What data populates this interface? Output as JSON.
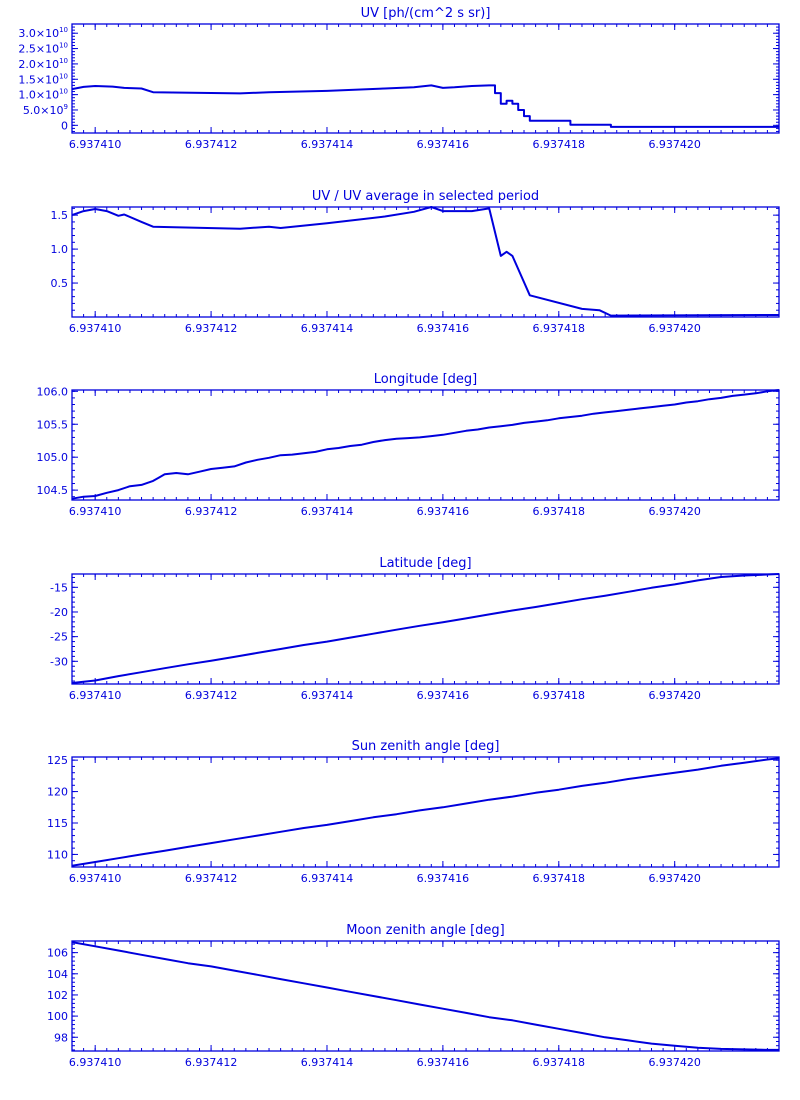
{
  "colors": {
    "line": "#0000dd",
    "background": "#ffffff"
  },
  "chart_data": [
    {
      "type": "line",
      "title": "UV [ph/(cm^2 s sr)]",
      "xlim": [
        6.9374096,
        6.9374218
      ],
      "ylim": [
        -2500000000.0,
        33000000000.0
      ],
      "xticks": [
        6.93741,
        6.937412,
        6.937414,
        6.937416,
        6.937418,
        6.93742
      ],
      "xtick_labels": [
        "6.937410",
        "6.937412",
        "6.937414",
        "6.937416",
        "6.937418",
        "6.937420"
      ],
      "yticks": [
        0,
        5000000000.0,
        10000000000.0,
        15000000000.0,
        20000000000.0,
        25000000000.0,
        30000000000.0
      ],
      "ytick_labels": [
        {
          "mant": "0",
          "exp": ""
        },
        {
          "mant": "5.0×10",
          "exp": "9"
        },
        {
          "mant": "1.0×10",
          "exp": "10"
        },
        {
          "mant": "1.5×10",
          "exp": "10"
        },
        {
          "mant": "2.0×10",
          "exp": "10"
        },
        {
          "mant": "2.5×10",
          "exp": "10"
        },
        {
          "mant": "3.0×10",
          "exp": "10"
        }
      ],
      "grid": false,
      "x": [
        6.9374096,
        6.9374098,
        6.93741,
        6.9374103,
        6.9374105,
        6.9374108,
        6.937411,
        6.9374125,
        6.937413,
        6.937414,
        6.937415,
        6.9374155,
        6.9374158,
        6.937416,
        6.9374162,
        6.9374165,
        6.9374168,
        6.9374169,
        6.9374169,
        6.937417,
        6.937417,
        6.9374171,
        6.9374171,
        6.9374172,
        6.9374172,
        6.9374173,
        6.9374173,
        6.9374174,
        6.9374174,
        6.9374175,
        6.9374175,
        6.9374182,
        6.9374182,
        6.9374189,
        6.9374189,
        6.9374218
      ],
      "y": [
        11800000000.0,
        12500000000.0,
        12800000000.0,
        12600000000.0,
        12200000000.0,
        12000000000.0,
        10800000000.0,
        10400000000.0,
        10800000000.0,
        11200000000.0,
        12000000000.0,
        12400000000.0,
        13000000000.0,
        12200000000.0,
        12400000000.0,
        12800000000.0,
        13000000000.0,
        13000000000.0,
        10500000000.0,
        10500000000.0,
        7000000000.0,
        7000000000.0,
        8000000000.0,
        8000000000.0,
        7000000000.0,
        7000000000.0,
        5000000000.0,
        5000000000.0,
        3000000000.0,
        3000000000.0,
        1500000000.0,
        1500000000.0,
        200000000.0,
        200000000.0,
        -500000000.0,
        -500000000.0
      ]
    },
    {
      "type": "line",
      "title": "UV / UV average in selected period",
      "xlim": [
        6.9374096,
        6.9374218
      ],
      "ylim": [
        0,
        1.62
      ],
      "xticks": [
        6.93741,
        6.937412,
        6.937414,
        6.937416,
        6.937418,
        6.93742
      ],
      "xtick_labels": [
        "6.937410",
        "6.937412",
        "6.937414",
        "6.937416",
        "6.937418",
        "6.937420"
      ],
      "yticks": [
        0.5,
        1.0,
        1.5
      ],
      "ytick_labels": [
        "0.5",
        "1.0",
        "1.5"
      ],
      "grid": false,
      "x": [
        6.9374096,
        6.9374098,
        6.93741,
        6.9374102,
        6.9374104,
        6.9374105,
        6.9374108,
        6.937411,
        6.9374125,
        6.937413,
        6.9374132,
        6.937414,
        6.937415,
        6.9374155,
        6.9374158,
        6.937416,
        6.9374165,
        6.9374168,
        6.937417,
        6.9374171,
        6.9374172,
        6.9374175,
        6.9374184,
        6.9374187,
        6.9374189,
        6.9374218
      ],
      "y": [
        1.5,
        1.56,
        1.59,
        1.56,
        1.49,
        1.51,
        1.4,
        1.33,
        1.3,
        1.33,
        1.31,
        1.38,
        1.48,
        1.55,
        1.63,
        1.56,
        1.56,
        1.6,
        0.9,
        0.96,
        0.9,
        0.32,
        0.12,
        0.1,
        0.02,
        0.03
      ]
    },
    {
      "type": "line",
      "title": "Longitude [deg]",
      "xlim": [
        6.9374096,
        6.9374218
      ],
      "ylim": [
        104.35,
        106.02
      ],
      "xticks": [
        6.93741,
        6.937412,
        6.937414,
        6.937416,
        6.937418,
        6.93742
      ],
      "xtick_labels": [
        "6.937410",
        "6.937412",
        "6.937414",
        "6.937416",
        "6.937418",
        "6.937420"
      ],
      "yticks": [
        104.5,
        105.0,
        105.5,
        106.0
      ],
      "ytick_labels": [
        "104.5",
        "105.0",
        "105.5",
        "106.0"
      ],
      "grid": false,
      "x": [
        6.9374096,
        6.9374098,
        6.93741,
        6.9374102,
        6.9374104,
        6.9374106,
        6.9374108,
        6.937411,
        6.9374111,
        6.9374112,
        6.9374114,
        6.9374116,
        6.9374118,
        6.937412,
        6.9374122,
        6.9374124,
        6.9374126,
        6.9374128,
        6.937413,
        6.9374132,
        6.9374134,
        6.9374136,
        6.9374138,
        6.937414,
        6.9374142,
        6.9374144,
        6.9374146,
        6.9374148,
        6.937415,
        6.9374152,
        6.9374154,
        6.9374156,
        6.9374158,
        6.937416,
        6.9374162,
        6.9374164,
        6.9374166,
        6.9374168,
        6.937417,
        6.9374172,
        6.9374174,
        6.9374176,
        6.9374178,
        6.937418,
        6.9374182,
        6.9374184,
        6.9374186,
        6.9374188,
        6.937419,
        6.9374192,
        6.9374194,
        6.9374196,
        6.9374198,
        6.93742,
        6.9374202,
        6.9374204,
        6.9374206,
        6.9374208,
        6.937421,
        6.9374212,
        6.9374214,
        6.9374216,
        6.9374218
      ],
      "y": [
        104.37,
        104.4,
        104.41,
        104.46,
        104.5,
        104.56,
        104.58,
        104.64,
        104.69,
        104.74,
        104.76,
        104.74,
        104.78,
        104.82,
        104.84,
        104.86,
        104.92,
        104.96,
        104.99,
        105.03,
        105.04,
        105.06,
        105.08,
        105.12,
        105.14,
        105.17,
        105.19,
        105.23,
        105.26,
        105.28,
        105.29,
        105.3,
        105.32,
        105.34,
        105.37,
        105.4,
        105.42,
        105.45,
        105.47,
        105.49,
        105.52,
        105.54,
        105.56,
        105.59,
        105.61,
        105.63,
        105.66,
        105.68,
        105.7,
        105.72,
        105.74,
        105.76,
        105.78,
        105.8,
        105.83,
        105.85,
        105.88,
        105.9,
        105.93,
        105.95,
        105.97,
        106.0,
        106.02
      ]
    },
    {
      "type": "line",
      "title": "Latitude [deg]",
      "xlim": [
        6.9374096,
        6.9374218
      ],
      "ylim": [
        -34.6,
        -12.3
      ],
      "xticks": [
        6.93741,
        6.937412,
        6.937414,
        6.937416,
        6.937418,
        6.93742
      ],
      "xtick_labels": [
        "6.937410",
        "6.937412",
        "6.937414",
        "6.937416",
        "6.937418",
        "6.937420"
      ],
      "yticks": [
        -30,
        -25,
        -20,
        -15
      ],
      "ytick_labels": [
        "-30",
        "-25",
        "-20",
        "-15"
      ],
      "grid": false,
      "x": [
        6.9374096,
        6.93741,
        6.9374104,
        6.9374108,
        6.9374112,
        6.9374116,
        6.937412,
        6.9374124,
        6.9374128,
        6.9374132,
        6.9374136,
        6.937414,
        6.9374144,
        6.9374148,
        6.9374152,
        6.9374156,
        6.937416,
        6.9374164,
        6.9374168,
        6.9374172,
        6.9374176,
        6.937418,
        6.9374184,
        6.9374188,
        6.9374192,
        6.9374196,
        6.93742,
        6.9374204,
        6.9374208,
        6.9374212,
        6.9374216,
        6.9374218
      ],
      "y": [
        -34.4,
        -33.9,
        -33.0,
        -32.2,
        -31.4,
        -30.6,
        -29.9,
        -29.1,
        -28.3,
        -27.5,
        -26.7,
        -26.0,
        -25.2,
        -24.4,
        -23.6,
        -22.8,
        -22.1,
        -21.3,
        -20.5,
        -19.7,
        -19.0,
        -18.2,
        -17.4,
        -16.7,
        -15.9,
        -15.1,
        -14.4,
        -13.6,
        -12.9,
        -12.6,
        -12.4,
        -12.3
      ]
    },
    {
      "type": "line",
      "title": "Sun zenith angle [deg]",
      "xlim": [
        6.9374096,
        6.9374218
      ],
      "ylim": [
        108.0,
        125.5
      ],
      "xticks": [
        6.93741,
        6.937412,
        6.937414,
        6.937416,
        6.937418,
        6.93742
      ],
      "xtick_labels": [
        "6.937410",
        "6.937412",
        "6.937414",
        "6.937416",
        "6.937418",
        "6.937420"
      ],
      "yticks": [
        110,
        115,
        120,
        125
      ],
      "ytick_labels": [
        "110",
        "115",
        "120",
        "125"
      ],
      "grid": false,
      "x": [
        6.9374096,
        6.93741,
        6.9374104,
        6.9374108,
        6.9374112,
        6.9374116,
        6.937412,
        6.9374124,
        6.9374128,
        6.9374132,
        6.9374136,
        6.937414,
        6.9374144,
        6.9374148,
        6.9374152,
        6.9374156,
        6.937416,
        6.9374164,
        6.9374168,
        6.9374172,
        6.9374176,
        6.937418,
        6.9374184,
        6.9374188,
        6.9374192,
        6.9374196,
        6.93742,
        6.9374204,
        6.9374208,
        6.9374212,
        6.9374216,
        6.9374218
      ],
      "y": [
        108.2,
        108.8,
        109.4,
        110.0,
        110.6,
        111.2,
        111.8,
        112.4,
        113.0,
        113.6,
        114.2,
        114.7,
        115.3,
        115.9,
        116.4,
        117.0,
        117.5,
        118.1,
        118.7,
        119.2,
        119.8,
        120.3,
        120.9,
        121.4,
        122.0,
        122.5,
        123.0,
        123.5,
        124.1,
        124.6,
        125.1,
        125.3
      ]
    },
    {
      "type": "line",
      "title": "Moon zenith angle [deg]",
      "xlim": [
        6.9374096,
        6.9374218
      ],
      "ylim": [
        96.7,
        107.1
      ],
      "xticks": [
        6.93741,
        6.937412,
        6.937414,
        6.937416,
        6.937418,
        6.93742
      ],
      "xtick_labels": [
        "6.937410",
        "6.937412",
        "6.937414",
        "6.937416",
        "6.937418",
        "6.937420"
      ],
      "yticks": [
        98,
        100,
        102,
        104,
        106
      ],
      "ytick_labels": [
        "98",
        "100",
        "102",
        "104",
        "106"
      ],
      "grid": false,
      "x": [
        6.9374096,
        6.93741,
        6.9374104,
        6.9374108,
        6.9374112,
        6.9374116,
        6.937412,
        6.9374124,
        6.9374128,
        6.9374132,
        6.9374136,
        6.937414,
        6.9374144,
        6.9374148,
        6.9374152,
        6.9374156,
        6.937416,
        6.9374164,
        6.9374168,
        6.9374172,
        6.9374176,
        6.937418,
        6.9374184,
        6.9374188,
        6.9374192,
        6.9374196,
        6.93742,
        6.9374204,
        6.9374208,
        6.9374212,
        6.9374216,
        6.9374218
      ],
      "y": [
        107.0,
        106.6,
        106.2,
        105.8,
        105.4,
        105.0,
        104.7,
        104.3,
        103.9,
        103.5,
        103.1,
        102.7,
        102.3,
        101.9,
        101.5,
        101.1,
        100.7,
        100.3,
        99.9,
        99.6,
        99.2,
        98.8,
        98.4,
        98.0,
        97.7,
        97.4,
        97.2,
        97.0,
        96.9,
        96.85,
        96.8,
        96.8
      ]
    }
  ]
}
